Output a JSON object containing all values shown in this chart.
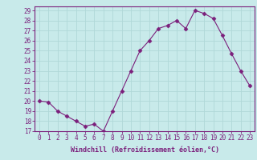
{
  "x": [
    0,
    1,
    2,
    3,
    4,
    5,
    6,
    7,
    8,
    9,
    10,
    11,
    12,
    13,
    14,
    15,
    16,
    17,
    18,
    19,
    20,
    21,
    22,
    23
  ],
  "y": [
    20.0,
    19.9,
    19.0,
    18.5,
    18.0,
    17.5,
    17.7,
    17.0,
    19.0,
    21.0,
    23.0,
    25.0,
    26.0,
    27.2,
    27.5,
    28.0,
    27.2,
    29.0,
    28.7,
    28.2,
    26.5,
    24.7,
    23.0,
    21.5
  ],
  "xlim": [
    -0.5,
    23.5
  ],
  "ylim": [
    17,
    29.4
  ],
  "yticks": [
    17,
    18,
    19,
    20,
    21,
    22,
    23,
    24,
    25,
    26,
    27,
    28,
    29
  ],
  "xticks": [
    0,
    1,
    2,
    3,
    4,
    5,
    6,
    7,
    8,
    9,
    10,
    11,
    12,
    13,
    14,
    15,
    16,
    17,
    18,
    19,
    20,
    21,
    22,
    23
  ],
  "xlabel": "Windchill (Refroidissement éolien,°C)",
  "line_color": "#7b1f7b",
  "marker": "D",
  "marker_size": 2.5,
  "bg_color": "#c8eaea",
  "grid_color": "#b0d8d8",
  "axis_line_color": "#7b1f7b",
  "tick_label_fontsize": 5.5,
  "xlabel_fontsize": 6.0
}
